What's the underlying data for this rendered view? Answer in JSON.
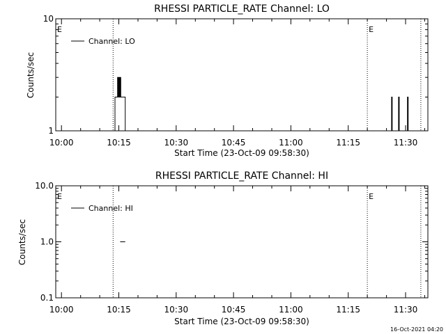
{
  "footer_timestamp": "16-Oct-2021 04:20",
  "chart_data": [
    {
      "type": "line",
      "title": "RHESSI PARTICLE_RATE Channel: LO",
      "xlabel": "Start Time (23-Oct-09 09:58:30)",
      "ylabel": "Counts/sec",
      "y_scale": "log",
      "ylim": [
        1,
        10
      ],
      "y_ticks": [
        {
          "value": 1,
          "label": "1"
        },
        {
          "value": 10,
          "label": "10"
        }
      ],
      "xlim": [
        "09:58:30",
        "11:35:50"
      ],
      "x_ticks": [
        {
          "value": "10:00",
          "label": "10:00"
        },
        {
          "value": "10:15",
          "label": "10:15"
        },
        {
          "value": "10:30",
          "label": "10:30"
        },
        {
          "value": "10:45",
          "label": "10:45"
        },
        {
          "value": "11:00",
          "label": "11:00"
        },
        {
          "value": "11:15",
          "label": "11:15"
        },
        {
          "value": "11:30",
          "label": "11:30"
        }
      ],
      "legend": {
        "position": "top-left",
        "label": "Channel: LO"
      },
      "vlines": [
        {
          "time": "10:13:30",
          "marker": ""
        },
        {
          "time": "11:20:00",
          "marker": "E"
        },
        {
          "time": "11:34:00",
          "marker": ""
        }
      ],
      "corner_marker": "E",
      "series": [
        {
          "name": "Channel: LO",
          "points": [
            [
              "10:14:00",
              1
            ],
            [
              "10:14:00",
              2
            ],
            [
              "10:14:40",
              2
            ],
            [
              "10:14:40",
              3
            ],
            [
              "10:14:50",
              3
            ],
            [
              "10:14:50",
              2
            ],
            [
              "10:15:00",
              2
            ],
            [
              "10:15:00",
              3
            ],
            [
              "10:15:10",
              3
            ],
            [
              "10:15:10",
              2
            ],
            [
              "10:15:20",
              2
            ],
            [
              "10:15:20",
              3
            ],
            [
              "10:15:30",
              3
            ],
            [
              "10:15:30",
              2
            ],
            [
              "10:16:40",
              2
            ],
            [
              "10:16:40",
              1
            ],
            [
              "11:26:20",
              1
            ],
            [
              "11:26:20",
              2
            ],
            [
              "11:26:30",
              2
            ],
            [
              "11:26:30",
              1
            ],
            [
              "11:28:10",
              1
            ],
            [
              "11:28:10",
              2
            ],
            [
              "11:28:20",
              2
            ],
            [
              "11:28:20",
              1
            ],
            [
              "11:30:30",
              1
            ],
            [
              "11:30:30",
              2
            ],
            [
              "11:30:40",
              2
            ],
            [
              "11:30:40",
              1
            ]
          ]
        }
      ]
    },
    {
      "type": "line",
      "title": "RHESSI PARTICLE_RATE Channel: HI",
      "xlabel": "Start Time (23-Oct-09 09:58:30)",
      "ylabel": "Counts/sec",
      "y_scale": "log",
      "ylim": [
        0.1,
        10
      ],
      "y_ticks": [
        {
          "value": 0.1,
          "label": "0.1"
        },
        {
          "value": 1,
          "label": "1.0"
        },
        {
          "value": 10,
          "label": "10.0"
        }
      ],
      "xlim": [
        "09:58:30",
        "11:35:50"
      ],
      "x_ticks": [
        {
          "value": "10:00",
          "label": "10:00"
        },
        {
          "value": "10:15",
          "label": "10:15"
        },
        {
          "value": "10:30",
          "label": "10:30"
        },
        {
          "value": "10:45",
          "label": "10:45"
        },
        {
          "value": "11:00",
          "label": "11:00"
        },
        {
          "value": "11:15",
          "label": "11:15"
        },
        {
          "value": "11:30",
          "label": "11:30"
        }
      ],
      "legend": {
        "position": "top-left",
        "label": "Channel: HI"
      },
      "vlines": [
        {
          "time": "10:13:30",
          "marker": ""
        },
        {
          "time": "11:20:00",
          "marker": "E"
        },
        {
          "time": "11:34:00",
          "marker": ""
        }
      ],
      "corner_marker": "E",
      "series": [
        {
          "name": "Channel: HI",
          "points": [
            [
              "10:15:20",
              1
            ],
            [
              "10:16:40",
              1
            ]
          ]
        }
      ]
    }
  ]
}
